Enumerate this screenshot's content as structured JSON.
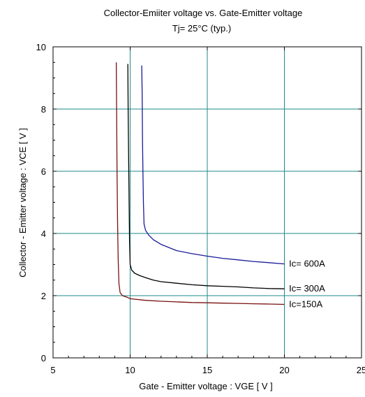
{
  "chart_data": {
    "type": "line",
    "title": "Collector-Emiiter voltage  vs. Gate-Emitter voltage",
    "subtitle": "Tj= 25°C  (typ.)",
    "xlabel": "Gate - Emitter voltage  :  VGE  [ V ]",
    "ylabel": "Collector - Emitter voltage  :  VCE  [ V ]",
    "xlim": [
      5,
      25
    ],
    "ylim": [
      0,
      10
    ],
    "xticks": [
      5,
      10,
      15,
      20,
      25
    ],
    "yticks": [
      0,
      2,
      4,
      6,
      8,
      10
    ],
    "xtick_labels": [
      "5",
      "10",
      "15",
      "20",
      "25"
    ],
    "ytick_labels": [
      "0",
      "2",
      "4",
      "6",
      "8",
      "10"
    ],
    "grid": true,
    "series": [
      {
        "name": "Ic= 600A",
        "color": "#1a1a9a",
        "x": [
          10.75,
          10.78,
          10.8,
          10.83,
          10.86,
          10.9,
          11.0,
          11.2,
          11.5,
          12.0,
          13.0,
          14.0,
          15.0,
          16.0,
          17.0,
          18.0,
          19.0,
          20.0
        ],
        "y": [
          9.4,
          8.5,
          7.0,
          6.0,
          5.0,
          4.3,
          4.1,
          3.95,
          3.8,
          3.65,
          3.45,
          3.35,
          3.27,
          3.2,
          3.15,
          3.1,
          3.06,
          3.02
        ]
      },
      {
        "name": "Ic= 300A",
        "color": "#000000",
        "x": [
          9.85,
          9.87,
          9.9,
          9.93,
          9.96,
          10.0,
          10.1,
          10.3,
          10.6,
          11.0,
          11.5,
          12.0,
          13.0,
          14.0,
          15.0,
          16.0,
          17.0,
          18.0,
          19.0,
          20.0
        ],
        "y": [
          9.45,
          8.0,
          6.5,
          5.0,
          3.8,
          3.0,
          2.82,
          2.72,
          2.65,
          2.58,
          2.5,
          2.45,
          2.4,
          2.35,
          2.32,
          2.3,
          2.28,
          2.25,
          2.23,
          2.22
        ]
      },
      {
        "name": "Ic=150A",
        "color": "#7a1010",
        "x": [
          9.1,
          9.12,
          9.15,
          9.18,
          9.22,
          9.27,
          9.35,
          9.5,
          9.8,
          10.0,
          11.0,
          12.0,
          13.0,
          14.0,
          15.0,
          16.0,
          17.0,
          18.0,
          19.0,
          20.0
        ],
        "y": [
          9.5,
          8.0,
          6.0,
          4.5,
          3.2,
          2.4,
          2.1,
          2.0,
          1.95,
          1.9,
          1.85,
          1.82,
          1.8,
          1.78,
          1.77,
          1.76,
          1.75,
          1.74,
          1.73,
          1.72
        ]
      }
    ],
    "curve_labels": [
      {
        "text": "Ic= 600A",
        "x": 20.3,
        "y": 3.02
      },
      {
        "text": "Ic= 300A",
        "x": 20.3,
        "y": 2.22
      },
      {
        "text": "Ic=150A",
        "x": 20.3,
        "y": 1.72
      }
    ]
  },
  "colors": {
    "grid": "#1f8a8a",
    "axis": "#000000"
  }
}
